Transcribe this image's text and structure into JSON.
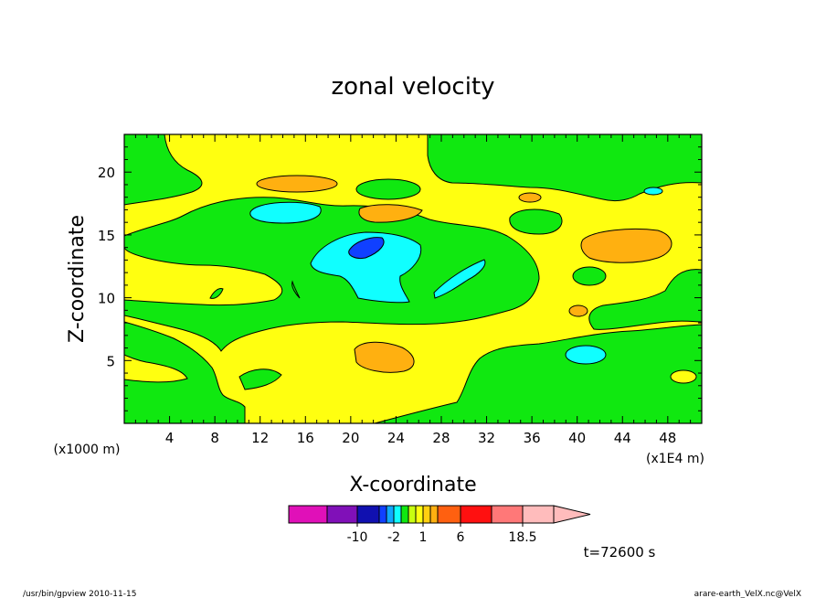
{
  "chart_data": {
    "type": "heatmap",
    "title": "zonal velocity",
    "xlabel": "X-coordinate",
    "ylabel": "Z-coordinate",
    "x_unit": "(x1E4 m)",
    "y_unit": "(x1000 m)",
    "xlim": [
      0,
      51
    ],
    "ylim": [
      0,
      23
    ],
    "x_ticks": [
      4,
      8,
      12,
      16,
      20,
      24,
      28,
      32,
      36,
      40,
      44,
      48
    ],
    "y_ticks": [
      5,
      10,
      15,
      20
    ],
    "colorbar": {
      "colors": [
        "#e010b8",
        "#8010b8",
        "#1010b0",
        "#1040ff",
        "#10a8ff",
        "#10ffff",
        "#10e810",
        "#c8ff10",
        "#ffff10",
        "#ffd010",
        "#ffb010",
        "#ff6010",
        "#ff1010",
        "#ff7878",
        "#ffbcbc"
      ],
      "tick_labels": [
        "-10",
        "-2",
        "1",
        "6",
        "18.5"
      ],
      "tick_after_index": [
        1,
        4,
        8,
        11,
        13
      ],
      "extend": "max"
    },
    "time_label": "t=72600 s",
    "footer_left": "/usr/bin/gpview   2010-11-15",
    "footer_right": "arare-earth_VelX.nc@VelX",
    "colors": {
      "green": "#10e810",
      "yellow": "#ffff10",
      "orange": "#ffb010",
      "cyan": "#10ffff",
      "blue": "#1040ff"
    }
  }
}
